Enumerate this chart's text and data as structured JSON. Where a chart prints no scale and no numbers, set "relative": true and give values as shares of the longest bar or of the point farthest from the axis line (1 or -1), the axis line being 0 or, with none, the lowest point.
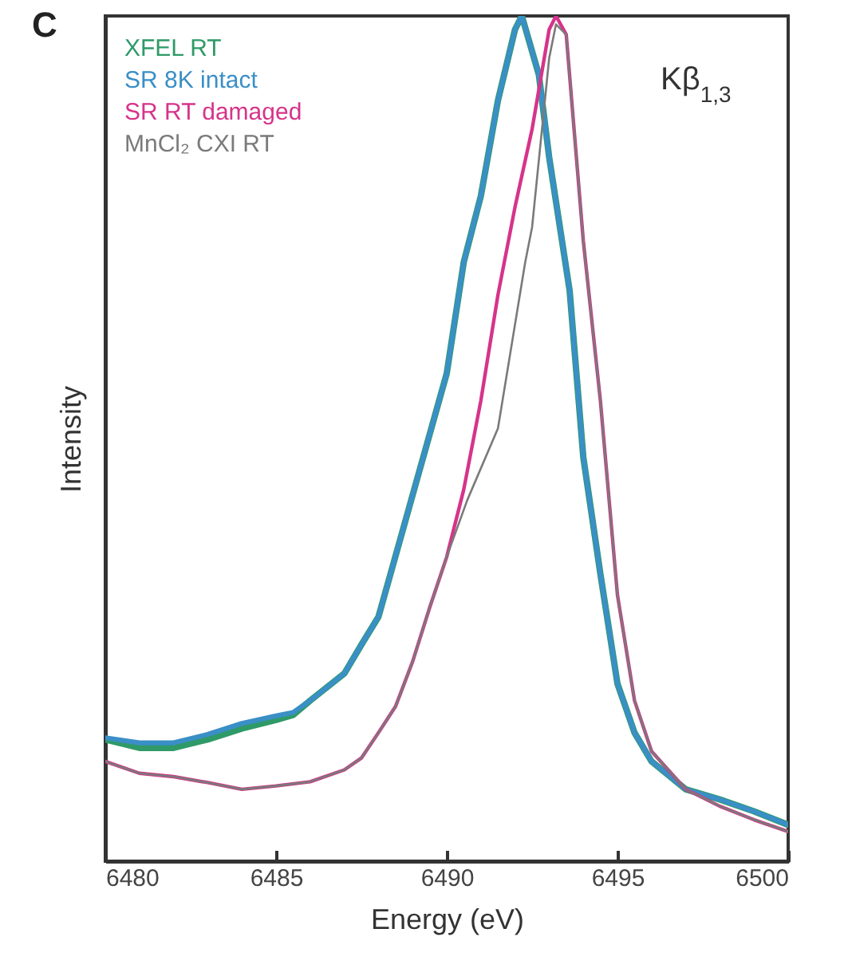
{
  "chart_data": {
    "type": "line",
    "relative": true,
    "xlabel": "Energy (eV)",
    "ylabel": "Intensity",
    "xlim": [
      6480,
      6500
    ],
    "xticks": [
      6480,
      6485,
      6490,
      6495,
      6500
    ],
    "legend": "top left",
    "annotations": [
      "C",
      "Kβ$_{1,3}$"
    ],
    "series": [
      {
        "name": "XFEL RT",
        "color": "#2f9a68",
        "x": [
          6480,
          6481,
          6482,
          6483,
          6484,
          6485,
          6485.5,
          6486,
          6487,
          6487.5,
          6488,
          6489,
          6490,
          6490.5,
          6491,
          6491.5,
          6492,
          6492.2,
          6492.7,
          6493,
          6493.6,
          6494,
          6494.5,
          6495,
          6495.5,
          6496,
          6497,
          6498,
          6499,
          6500
        ],
        "values": [
          0.144,
          0.134,
          0.134,
          0.144,
          0.157,
          0.167,
          0.173,
          0.19,
          0.222,
          0.256,
          0.289,
          0.433,
          0.577,
          0.709,
          0.787,
          0.9,
          0.984,
          1,
          0.93,
          0.833,
          0.675,
          0.478,
          0.34,
          0.21,
          0.152,
          0.118,
          0.085,
          0.073,
          0.059,
          0.043
        ]
      },
      {
        "name": "SR 8K intact",
        "color": "#3a8fc6",
        "x": [
          6480,
          6481,
          6482,
          6483,
          6484,
          6485,
          6485.5,
          6486,
          6487,
          6487.5,
          6488,
          6489,
          6490,
          6490.5,
          6491,
          6491.5,
          6492,
          6492.2,
          6492.7,
          6493,
          6493.6,
          6494,
          6494.5,
          6495,
          6495.5,
          6496,
          6497,
          6498,
          6499,
          6500
        ],
        "values": [
          0.146,
          0.14,
          0.14,
          0.15,
          0.163,
          0.172,
          0.176,
          0.19,
          0.222,
          0.256,
          0.289,
          0.433,
          0.577,
          0.709,
          0.787,
          0.9,
          0.984,
          1,
          0.93,
          0.833,
          0.675,
          0.478,
          0.34,
          0.21,
          0.152,
          0.118,
          0.085,
          0.073,
          0.059,
          0.043
        ]
      },
      {
        "name": "SR RT damaged",
        "color": "#d6348a",
        "x": [
          6480,
          6481,
          6482,
          6483,
          6484,
          6485,
          6486,
          6487,
          6487.5,
          6488,
          6488.5,
          6489,
          6489.5,
          6490,
          6490.5,
          6491,
          6491.5,
          6492,
          6492.5,
          6493,
          6493.2,
          6493.5,
          6494,
          6494.5,
          6495,
          6495.5,
          6496,
          6497,
          6498,
          6499,
          6500
        ],
        "values": [
          0.118,
          0.104,
          0.1,
          0.093,
          0.085,
          0.089,
          0.094,
          0.108,
          0.122,
          0.152,
          0.183,
          0.236,
          0.3,
          0.36,
          0.44,
          0.545,
          0.67,
          0.774,
          0.866,
          0.984,
          1,
          0.978,
          0.734,
          0.545,
          0.315,
          0.19,
          0.13,
          0.085,
          0.065,
          0.049,
          0.035
        ]
      },
      {
        "name": "MnCl₂ CXI RT",
        "color": "#7a7a7a",
        "x": [
          6480,
          6481,
          6482,
          6483,
          6484,
          6485,
          6486,
          6487,
          6487.5,
          6488,
          6488.5,
          6489,
          6489.5,
          6490,
          6490.6,
          6491.5,
          6492.3,
          6492.5,
          6493,
          6493.2,
          6493.5,
          6494,
          6494.5,
          6495,
          6495.5,
          6496,
          6497,
          6498,
          6499,
          6500
        ],
        "values": [
          0.118,
          0.104,
          0.1,
          0.093,
          0.085,
          0.089,
          0.094,
          0.108,
          0.122,
          0.152,
          0.183,
          0.236,
          0.3,
          0.36,
          0.427,
          0.512,
          0.709,
          0.75,
          0.95,
          0.99,
          0.978,
          0.734,
          0.545,
          0.315,
          0.19,
          0.13,
          0.085,
          0.065,
          0.049,
          0.035
        ]
      }
    ]
  }
}
